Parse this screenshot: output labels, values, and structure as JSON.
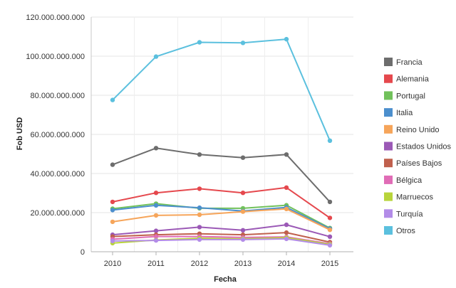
{
  "chart_data": {
    "type": "line",
    "xlabel": "Fecha",
    "ylabel": "Fob USD",
    "x": [
      2010,
      2011,
      2012,
      2013,
      2014,
      2015
    ],
    "ylim": [
      0,
      120000000000
    ],
    "yticks": [
      0,
      20000000000,
      40000000000,
      60000000000,
      80000000000,
      100000000000,
      120000000000
    ],
    "ytick_labels": [
      "0",
      "20.000.000.000",
      "40.000.000.000",
      "60.000.000.000",
      "80.000.000.000",
      "100.000.000.000",
      "120.000.000.000"
    ],
    "grid": true,
    "legend_position": "right",
    "series": [
      {
        "name": "Francia",
        "color": "#6d6d6d",
        "values": [
          44500000000,
          53000000000,
          49700000000,
          48100000000,
          49700000000,
          25500000000
        ]
      },
      {
        "name": "Alemania",
        "color": "#e5484d",
        "values": [
          25500000000,
          30100000000,
          32200000000,
          30100000000,
          32800000000,
          17300000000
        ]
      },
      {
        "name": "Portugal",
        "color": "#71c15b",
        "values": [
          22000000000,
          24600000000,
          22200000000,
          22200000000,
          23800000000,
          12100000000
        ]
      },
      {
        "name": "Italia",
        "color": "#4c8fcd",
        "values": [
          21300000000,
          23700000000,
          22500000000,
          20800000000,
          22700000000,
          11800000000
        ]
      },
      {
        "name": "Reino Unido",
        "color": "#f6a55a",
        "values": [
          15300000000,
          18600000000,
          18900000000,
          20500000000,
          21900000000,
          11200000000
        ]
      },
      {
        "name": "Estados Unidos",
        "color": "#9b59b6",
        "values": [
          8700000000,
          10700000000,
          12600000000,
          11000000000,
          13800000000,
          7700000000
        ]
      },
      {
        "name": "Países Bajos",
        "color": "#c0604d",
        "values": [
          7800000000,
          8700000000,
          9200000000,
          8700000000,
          9800000000,
          4900000000
        ]
      },
      {
        "name": "Bélgica",
        "color": "#e06cb6",
        "values": [
          6400000000,
          7800000000,
          7800000000,
          7300000000,
          7600000000,
          4100000000
        ]
      },
      {
        "name": "Marruecos",
        "color": "#b8d43b",
        "values": [
          4400000000,
          6000000000,
          6900000000,
          6600000000,
          7200000000,
          3800000000
        ]
      },
      {
        "name": "Turquía",
        "color": "#b38ce8",
        "values": [
          5500000000,
          5800000000,
          6200000000,
          6200000000,
          6600000000,
          3300000000
        ]
      },
      {
        "name": "Otros",
        "color": "#5bc0de",
        "values": [
          77600000000,
          99800000000,
          107100000000,
          106800000000,
          108700000000,
          56800000000
        ]
      }
    ]
  }
}
